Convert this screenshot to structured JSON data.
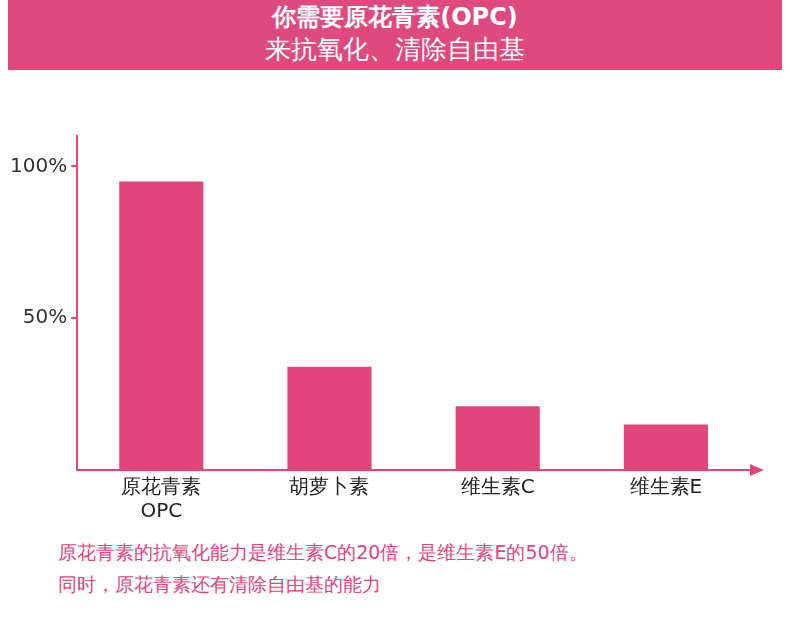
{
  "chart_data": {
    "type": "bar",
    "title": "你需要原花青素(OPC)",
    "subtitle": "来抗氧化、清除自由基",
    "categories": [
      "原花青素\nOPC",
      "胡萝卜素",
      "维生素C",
      "维生素E"
    ],
    "values": [
      95,
      34,
      21,
      15
    ],
    "color": "#e0457b",
    "ylim": [
      0,
      110
    ],
    "yticks": [
      {
        "value": 50,
        "label": "50%"
      },
      {
        "value": 100,
        "label": "100%"
      }
    ],
    "grid": false,
    "annotations": [
      "原花青素的抗氧化能力是维生素C的20倍，是维生素E的50倍。",
      "同时，原花青素还有清除自由基的能力"
    ]
  }
}
